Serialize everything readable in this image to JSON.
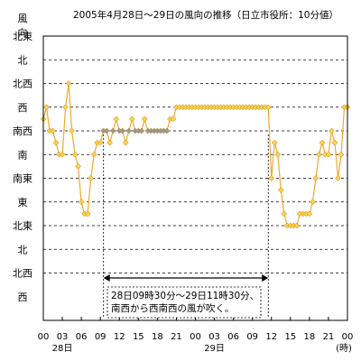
{
  "chart_data": {
    "type": "line",
    "title": "2005年4月28日～29日の風向の推移（日立市役所：10分値）",
    "ylabel": "風向",
    "y_categories": [
      "西",
      "北西",
      "北",
      "北東",
      "東",
      "南東",
      "南",
      "南西",
      "西",
      "北西",
      "北",
      "北東"
    ],
    "y_category_indices": [
      4,
      5,
      6,
      7,
      8,
      9,
      10,
      11,
      12,
      13,
      14,
      15
    ],
    "ylim": [
      4,
      15
    ],
    "xlabel": "",
    "x_unit": "(時)",
    "x_tick_labels": [
      "00",
      "03",
      "06",
      "09",
      "12",
      "15",
      "18",
      "21",
      "00",
      "03",
      "06",
      "09",
      "12",
      "15",
      "18",
      "21",
      "00"
    ],
    "x_ticks_hours": [
      0,
      3,
      6,
      9,
      12,
      15,
      18,
      21,
      24,
      27,
      30,
      33,
      36,
      39,
      42,
      45,
      48
    ],
    "x_date_labels": [
      {
        "text": "28日",
        "hour": 3
      },
      {
        "text": "29日",
        "hour": 27
      }
    ],
    "xlim": [
      0,
      48
    ],
    "grid": "dashed horizontal at each direction",
    "series": [
      {
        "color": "#f0a830",
        "marker_color": "#ffd24a",
        "highlight_marker_color": "#999999",
        "x": [
          0.0,
          0.5,
          1.0,
          1.5,
          2.0,
          2.5,
          3.0,
          3.5,
          4.0,
          4.5,
          5.0,
          5.5,
          6.0,
          6.5,
          7.0,
          7.5,
          8.0,
          8.5,
          9.0,
          9.5,
          10.0,
          10.5,
          11.0,
          11.5,
          12.0,
          12.5,
          13.0,
          13.5,
          14.0,
          14.5,
          15.0,
          15.5,
          16.0,
          16.5,
          17.0,
          17.5,
          18.0,
          18.5,
          19.0,
          19.5,
          20.0,
          20.5,
          21.0,
          21.5,
          22.0,
          22.5,
          23.0,
          23.5,
          24.0,
          24.5,
          25.0,
          25.5,
          26.0,
          26.5,
          27.0,
          27.5,
          28.0,
          28.5,
          29.0,
          29.5,
          30.0,
          30.5,
          31.0,
          31.5,
          32.0,
          32.5,
          33.0,
          33.5,
          34.0,
          34.5,
          35.0,
          35.5,
          36.0,
          36.5,
          37.0,
          37.5,
          38.0,
          38.5,
          39.0,
          39.5,
          40.0,
          40.5,
          41.0,
          41.5,
          42.0,
          42.5,
          43.0,
          43.5,
          44.0,
          44.5,
          45.0,
          45.5,
          46.0,
          46.5,
          47.0,
          47.5,
          48.0
        ],
        "y": [
          11.5,
          12.0,
          11.0,
          11.0,
          10.5,
          10.0,
          10.0,
          12.0,
          13.0,
          11.0,
          10.0,
          9.5,
          8.0,
          7.5,
          7.5,
          9.0,
          10.0,
          10.5,
          10.5,
          11.0,
          11.0,
          10.5,
          11.0,
          11.5,
          11.0,
          11.0,
          10.5,
          11.0,
          11.5,
          11.0,
          11.0,
          11.0,
          11.5,
          11.0,
          11.0,
          11.0,
          11.0,
          11.0,
          11.0,
          11.0,
          11.5,
          11.5,
          12.0,
          12.0,
          12.0,
          12.0,
          12.0,
          12.0,
          12.0,
          12.0,
          12.0,
          12.0,
          12.0,
          12.0,
          12.0,
          12.0,
          12.0,
          12.0,
          12.0,
          12.0,
          12.0,
          12.0,
          12.0,
          12.0,
          12.0,
          12.0,
          12.0,
          12.0,
          12.0,
          12.0,
          12.0,
          12.0,
          9.0,
          10.5,
          10.0,
          8.5,
          7.5,
          7.0,
          7.0,
          7.0,
          7.0,
          7.5,
          7.5,
          7.5,
          7.5,
          8.0,
          9.0,
          10.0,
          10.5,
          10.0,
          10.0,
          11.0,
          10.5,
          9.0,
          10.0,
          12.0,
          12.0
        ],
        "highlight_range_hours": [
          9.5,
          35.5
        ]
      }
    ],
    "annotation": {
      "lines": [
        "28日09時30分～29日11時30分、",
        "南西から西南西の風が吹く。"
      ],
      "arrow_from_hour": 9.5,
      "arrow_to_hour": 35.5
    }
  }
}
